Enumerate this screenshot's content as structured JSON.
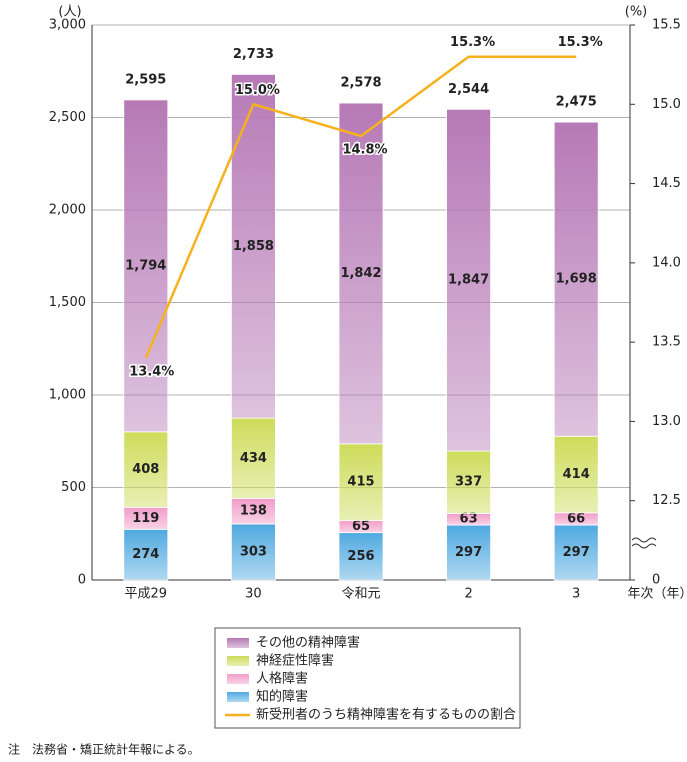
{
  "chart_data": {
    "type": "bar",
    "y_unit": "(人)",
    "y2_unit": "(%)",
    "x_label": "年次（年）",
    "categories": [
      "平成29",
      "30",
      "令和元",
      "2",
      "3"
    ],
    "ylim": [
      0,
      3000
    ],
    "yticks": [
      0,
      500,
      {
        "value": 1000,
        "label": "1,000"
      },
      {
        "value": 1500,
        "label": "1,500"
      },
      {
        "value": 2000,
        "label": "2,000"
      },
      {
        "value": 2500,
        "label": "2,500"
      },
      {
        "value": 3000,
        "label": "3,000"
      }
    ],
    "y2lim": [
      12.0,
      15.5
    ],
    "y2ticks": [
      0,
      12.5,
      {
        "value": 13.0,
        "label": "13.0"
      },
      13.5,
      {
        "value": 14.0,
        "label": "14.0"
      },
      14.5,
      {
        "value": 15.0,
        "label": "15.0"
      },
      15.5
    ],
    "grid": true,
    "series": [
      {
        "name": "知的障害",
        "color": "#4fa9e0",
        "values": [
          274,
          303,
          256,
          297,
          297
        ]
      },
      {
        "name": "人格障害",
        "color": "#f19cc8",
        "values": [
          119,
          138,
          65,
          63,
          66
        ]
      },
      {
        "name": "神経症性障害",
        "color": "#cddc5a",
        "values": [
          408,
          434,
          415,
          337,
          414
        ],
        "value_labels": [
          "408",
          "434",
          "415",
          "337",
          "414"
        ]
      },
      {
        "name": "その他の精神障害",
        "color": "#b679b6",
        "values": [
          1794,
          1858,
          1842,
          1847,
          1698
        ],
        "value_labels": [
          "1,794",
          "1,858",
          "1,842",
          "1,847",
          "1,698"
        ]
      },
      {
        "name": "新受刑者のうち精神障害を有するものの割合",
        "color": "#f5b21e",
        "type": "line",
        "axis": "y2",
        "values": [
          13.4,
          15.0,
          14.8,
          15.3,
          15.3
        ],
        "value_labels": [
          "13.4%",
          "15.0%",
          "14.8%",
          "15.3%",
          "15.3%"
        ]
      }
    ],
    "totals": [
      2595,
      2733,
      2578,
      2544,
      2475
    ],
    "total_labels": [
      "2,595",
      "2,733",
      "2,578",
      "2,544",
      "2,475"
    ],
    "note": "注　法務省・矯正統計年報による。"
  }
}
